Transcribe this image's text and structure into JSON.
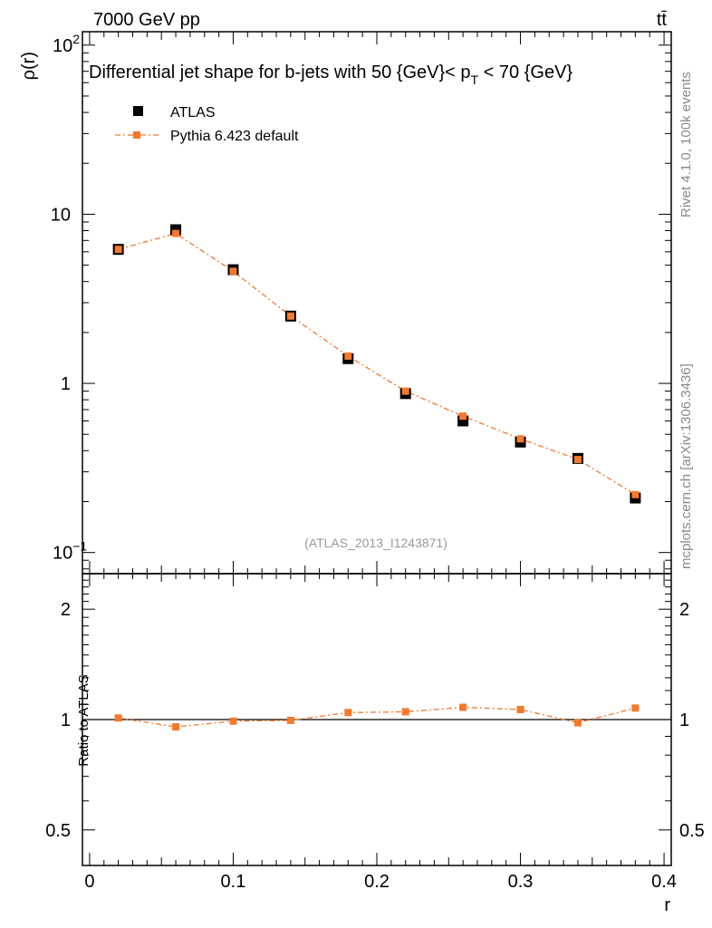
{
  "header": {
    "left": "7000 GeV pp",
    "right": "tt̄",
    "side_rivet": "Rivet 4.1.0,  100k events",
    "side_mcplots": "mcplots.cern.ch [arXiv:1306.3436]"
  },
  "colors": {
    "data": "#000000",
    "mc": "#f5792a",
    "watermark": "#999999",
    "side_text": "#888888"
  },
  "chart_data": [
    {
      "type": "scatter",
      "panel": "main",
      "title": "Differential jet shape for b-jets with 50 {GeV}< p_T < 70 {GeV}",
      "title_parts": {
        "pre": "Differential jet shape for b-jets with 50 {GeV}< p",
        "sub": "T",
        "post": " < 70 {GeV}"
      },
      "ylabel": "ρ(r)",
      "xlabel": "",
      "yscale": "log",
      "xlim": [
        -0.005,
        0.405
      ],
      "ylim": [
        0.075,
        120
      ],
      "y_ticks": [
        {
          "value": 0.1,
          "base": "10",
          "exp": "−1"
        },
        {
          "value": 1,
          "label": "1"
        },
        {
          "value": 10,
          "label": "10"
        },
        {
          "value": 100,
          "base": "10",
          "exp": "2"
        }
      ],
      "watermark": "(ATLAS_2013_I1243871)",
      "legend": {
        "position": "top-left",
        "entries": [
          "ATLAS",
          "Pythia 6.423 default"
        ]
      },
      "x": [
        0.02,
        0.06,
        0.1,
        0.14,
        0.18,
        0.22,
        0.26,
        0.3,
        0.34,
        0.38
      ],
      "series": [
        {
          "name": "ATLAS",
          "marker": "square",
          "values": [
            6.2,
            8.1,
            4.7,
            2.5,
            1.4,
            0.87,
            0.6,
            0.45,
            0.36,
            0.21
          ]
        },
        {
          "name": "Pythia 6.423 default",
          "marker": "small-square",
          "line": "dash-dot",
          "values": [
            6.2,
            7.7,
            4.6,
            2.5,
            1.45,
            0.9,
            0.64,
            0.47,
            0.355,
            0.22
          ]
        }
      ]
    },
    {
      "type": "line",
      "panel": "ratio",
      "ylabel": "Ratio to ATLAS",
      "xlabel": "r",
      "yscale": "log",
      "xlim": [
        -0.005,
        0.405
      ],
      "ylim": [
        0.4,
        2.5
      ],
      "x_ticks": [
        {
          "value": 0,
          "label": "0"
        },
        {
          "value": 0.1,
          "label": "0.1"
        },
        {
          "value": 0.2,
          "label": "0.2"
        },
        {
          "value": 0.3,
          "label": "0.3"
        },
        {
          "value": 0.4,
          "label": "0.4"
        }
      ],
      "y_ticks": [
        {
          "value": 0.5,
          "label": "0.5"
        },
        {
          "value": 1,
          "label": "1"
        },
        {
          "value": 2,
          "label": "2"
        }
      ],
      "reference": 1,
      "x": [
        0.02,
        0.06,
        0.1,
        0.14,
        0.18,
        0.22,
        0.26,
        0.3,
        0.34,
        0.38
      ],
      "series": [
        {
          "name": "Pythia 6.423 default",
          "values": [
            1.01,
            0.955,
            0.99,
            0.995,
            1.045,
            1.05,
            1.08,
            1.065,
            0.98,
            1.075
          ]
        }
      ]
    }
  ]
}
